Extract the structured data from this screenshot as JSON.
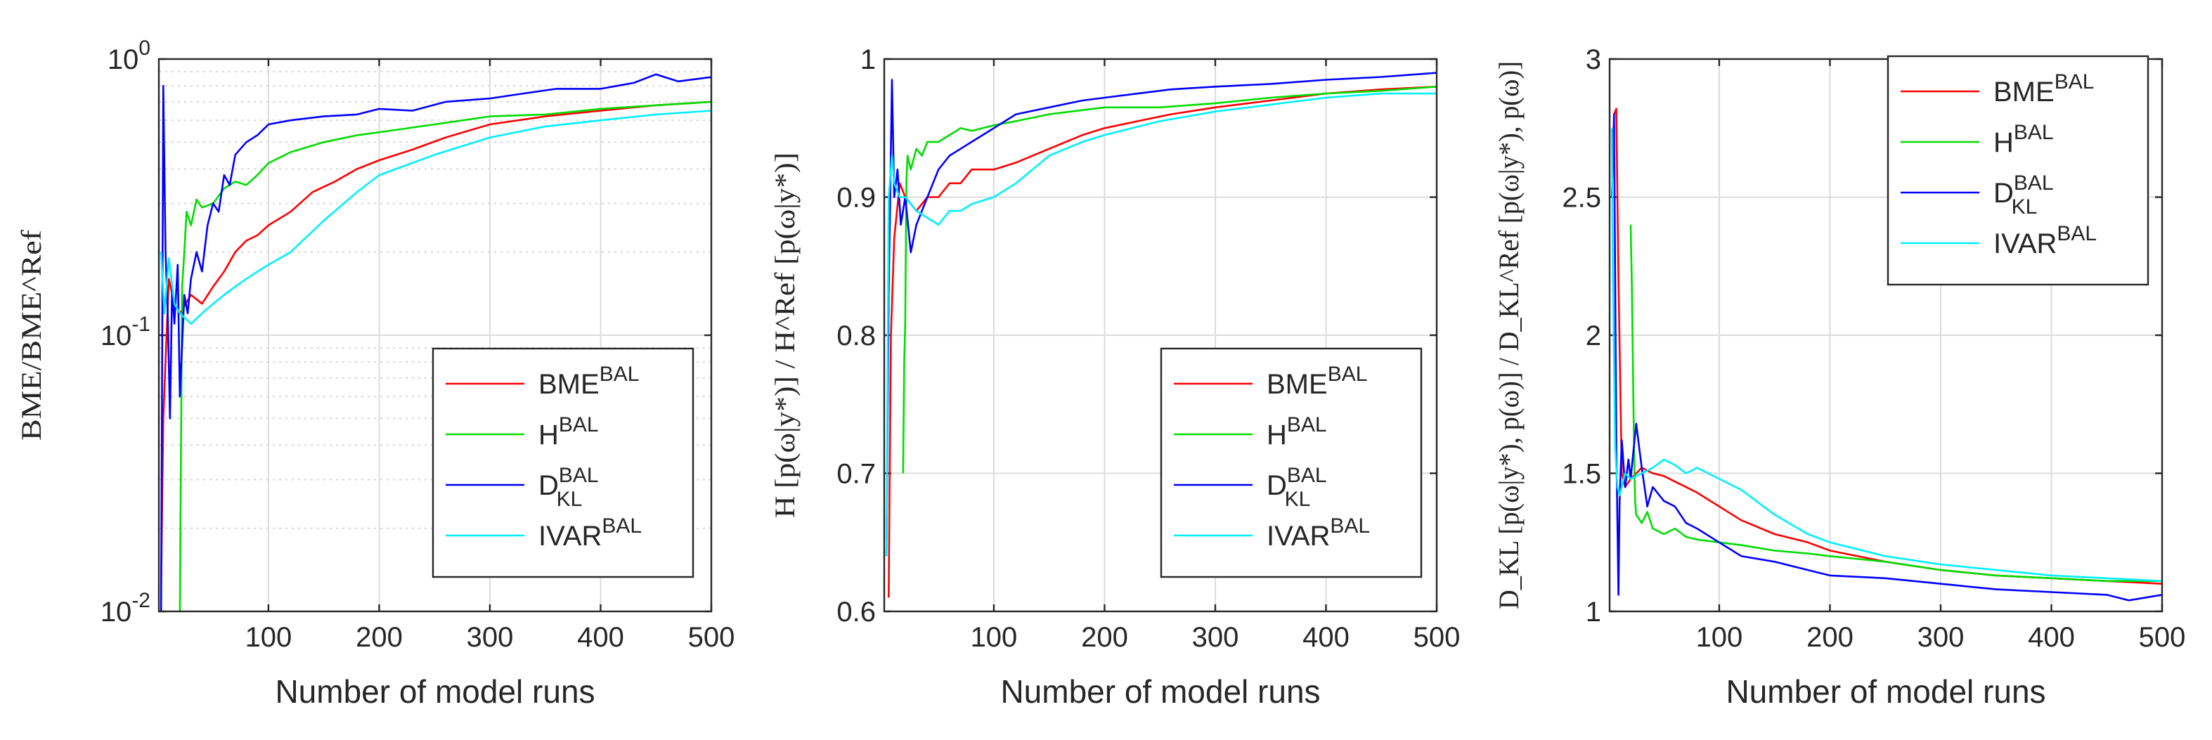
{
  "chart_data": [
    {
      "type": "line",
      "title": "",
      "xlabel": "Number of model runs",
      "ylabel": "BME/BME^Ref",
      "yscale": "log",
      "xlim": [
        1,
        500
      ],
      "ylim": [
        0.01,
        1
      ],
      "xticks": [
        "100",
        "200",
        "300",
        "400",
        "500"
      ],
      "yticks": [
        {
          "base": "10",
          "exp": "0",
          "value": 1
        },
        {
          "base": "10",
          "exp": "-1",
          "value": 0.1
        },
        {
          "base": "10",
          "exp": "-2",
          "value": 0.01
        }
      ],
      "legend_position": "bottom-right",
      "grid": true,
      "series": [
        {
          "name": "BME",
          "sup": "BAL",
          "sub": "",
          "color": "#ff0000",
          "x": [
            3,
            5,
            10,
            15,
            20,
            30,
            40,
            50,
            60,
            70,
            80,
            90,
            100,
            120,
            140,
            160,
            180,
            200,
            230,
            260,
            300,
            350,
            400,
            450,
            500
          ],
          "y": [
            0.012,
            0.05,
            0.16,
            0.13,
            0.12,
            0.14,
            0.13,
            0.15,
            0.17,
            0.2,
            0.22,
            0.23,
            0.25,
            0.28,
            0.33,
            0.36,
            0.4,
            0.43,
            0.47,
            0.52,
            0.58,
            0.62,
            0.65,
            0.68,
            0.7
          ]
        },
        {
          "name": "H",
          "sup": "BAL",
          "sub": "",
          "color": "#00dd00",
          "x": [
            20,
            22,
            24,
            26,
            30,
            35,
            40,
            50,
            60,
            70,
            80,
            90,
            100,
            120,
            150,
            180,
            210,
            250,
            300,
            350,
            400,
            450,
            500
          ],
          "y": [
            0.01,
            0.15,
            0.2,
            0.28,
            0.25,
            0.31,
            0.29,
            0.3,
            0.34,
            0.36,
            0.35,
            0.38,
            0.42,
            0.46,
            0.5,
            0.53,
            0.55,
            0.58,
            0.62,
            0.63,
            0.66,
            0.68,
            0.7
          ]
        },
        {
          "name": "D",
          "sup": "BAL",
          "sub": "KL",
          "color": "#0000ff",
          "x": [
            3,
            5,
            7,
            9,
            11,
            13,
            15,
            18,
            20,
            24,
            27,
            30,
            35,
            40,
            45,
            50,
            55,
            60,
            65,
            70,
            80,
            90,
            100,
            120,
            150,
            180,
            200,
            230,
            260,
            300,
            330,
            360,
            400,
            430,
            450,
            470,
            500
          ],
          "y": [
            0.01,
            0.8,
            0.2,
            0.12,
            0.05,
            0.15,
            0.11,
            0.18,
            0.06,
            0.14,
            0.12,
            0.16,
            0.2,
            0.17,
            0.25,
            0.3,
            0.28,
            0.38,
            0.35,
            0.45,
            0.5,
            0.53,
            0.58,
            0.6,
            0.62,
            0.63,
            0.66,
            0.65,
            0.7,
            0.72,
            0.75,
            0.78,
            0.78,
            0.82,
            0.88,
            0.83,
            0.86
          ]
        },
        {
          "name": "IVAR",
          "sup": "BAL",
          "sub": "",
          "color": "#00f0ff",
          "x": [
            3,
            6,
            10,
            15,
            20,
            30,
            40,
            50,
            60,
            70,
            80,
            90,
            100,
            120,
            150,
            180,
            200,
            250,
            300,
            350,
            400,
            450,
            500
          ],
          "y": [
            0.2,
            0.12,
            0.19,
            0.13,
            0.12,
            0.11,
            0.12,
            0.13,
            0.14,
            0.15,
            0.16,
            0.17,
            0.18,
            0.2,
            0.26,
            0.33,
            0.38,
            0.45,
            0.52,
            0.57,
            0.6,
            0.63,
            0.65
          ]
        }
      ]
    },
    {
      "type": "line",
      "title": "",
      "xlabel": "Number of model runs",
      "ylabel": "H [p(ω|y*)] / H^Ref [p(ω|y*)]",
      "xlim": [
        1,
        500
      ],
      "ylim": [
        0.6,
        1
      ],
      "xticks": [
        "100",
        "200",
        "300",
        "400",
        "500"
      ],
      "yticks": [
        "0.6",
        "0.7",
        "0.8",
        "0.9",
        "1"
      ],
      "legend_position": "bottom-right",
      "grid": true,
      "series": [
        {
          "name": "BME",
          "sup": "BAL",
          "sub": "",
          "color": "#ff0000",
          "x": [
            5,
            7,
            10,
            15,
            20,
            30,
            40,
            50,
            60,
            70,
            80,
            100,
            120,
            150,
            180,
            200,
            230,
            260,
            300,
            350,
            400,
            450,
            500
          ],
          "y": [
            0.61,
            0.8,
            0.87,
            0.91,
            0.9,
            0.89,
            0.9,
            0.9,
            0.91,
            0.91,
            0.92,
            0.92,
            0.925,
            0.935,
            0.945,
            0.95,
            0.955,
            0.96,
            0.965,
            0.97,
            0.975,
            0.978,
            0.98
          ]
        },
        {
          "name": "H",
          "sup": "BAL",
          "sub": "",
          "color": "#00dd00",
          "x": [
            18,
            19,
            20,
            21,
            22,
            25,
            30,
            35,
            40,
            50,
            60,
            70,
            80,
            100,
            120,
            150,
            180,
            200,
            250,
            300,
            350,
            400,
            450,
            500
          ],
          "y": [
            0.7,
            0.78,
            0.81,
            0.91,
            0.93,
            0.92,
            0.935,
            0.93,
            0.94,
            0.94,
            0.945,
            0.95,
            0.948,
            0.952,
            0.955,
            0.96,
            0.963,
            0.965,
            0.965,
            0.968,
            0.972,
            0.975,
            0.977,
            0.98
          ]
        },
        {
          "name": "D",
          "sup": "BAL",
          "sub": "KL",
          "color": "#0000ff",
          "x": [
            3,
            5,
            8,
            10,
            13,
            16,
            20,
            25,
            30,
            35,
            40,
            45,
            50,
            60,
            70,
            80,
            100,
            120,
            150,
            180,
            200,
            230,
            260,
            300,
            350,
            400,
            450,
            500
          ],
          "y": [
            0.64,
            0.83,
            0.985,
            0.9,
            0.92,
            0.88,
            0.9,
            0.86,
            0.88,
            0.89,
            0.9,
            0.91,
            0.92,
            0.93,
            0.935,
            0.94,
            0.95,
            0.96,
            0.965,
            0.97,
            0.972,
            0.975,
            0.978,
            0.98,
            0.982,
            0.985,
            0.987,
            0.99
          ]
        },
        {
          "name": "IVAR",
          "sup": "BAL",
          "sub": "",
          "color": "#00f0ff",
          "x": [
            3,
            5,
            8,
            10,
            15,
            20,
            30,
            40,
            50,
            60,
            70,
            80,
            100,
            120,
            150,
            180,
            200,
            250,
            300,
            350,
            400,
            450,
            500
          ],
          "y": [
            0.64,
            0.9,
            0.93,
            0.91,
            0.9,
            0.9,
            0.89,
            0.885,
            0.88,
            0.89,
            0.89,
            0.895,
            0.9,
            0.91,
            0.93,
            0.94,
            0.945,
            0.955,
            0.962,
            0.967,
            0.972,
            0.975,
            0.975
          ]
        }
      ]
    },
    {
      "type": "line",
      "title": "",
      "xlabel": "Number of model runs",
      "ylabel": "D_KL [p(ω|y*), p(ω)] / D_KL^Ref [p(ω|y*), p(ω)]",
      "xlim": [
        1,
        500
      ],
      "ylim": [
        1,
        3
      ],
      "xticks": [
        "100",
        "200",
        "300",
        "400",
        "500"
      ],
      "yticks": [
        "1",
        "1.5",
        "2",
        "2.5",
        "3"
      ],
      "legend_position": "top-right",
      "grid": true,
      "series": [
        {
          "name": "BME",
          "sup": "BAL",
          "sub": "",
          "color": "#ff0000",
          "x": [
            5,
            7,
            9,
            12,
            15,
            20,
            25,
            30,
            40,
            50,
            60,
            70,
            80,
            100,
            120,
            150,
            180,
            200,
            250,
            300,
            350,
            400,
            450,
            500
          ],
          "y": [
            2.8,
            2.82,
            2.2,
            1.5,
            1.45,
            1.48,
            1.5,
            1.52,
            1.5,
            1.49,
            1.47,
            1.45,
            1.43,
            1.38,
            1.33,
            1.28,
            1.25,
            1.22,
            1.18,
            1.15,
            1.13,
            1.12,
            1.11,
            1.1
          ]
        },
        {
          "name": "H",
          "sup": "BAL",
          "sub": "",
          "color": "#00dd00",
          "x": [
            20,
            21,
            22,
            23,
            24,
            25,
            30,
            35,
            40,
            50,
            60,
            70,
            80,
            100,
            120,
            150,
            180,
            200,
            250,
            300,
            350,
            400,
            450,
            500
          ],
          "y": [
            2.4,
            2.2,
            1.9,
            1.6,
            1.4,
            1.35,
            1.32,
            1.36,
            1.3,
            1.28,
            1.3,
            1.27,
            1.26,
            1.25,
            1.24,
            1.22,
            1.21,
            1.2,
            1.18,
            1.15,
            1.13,
            1.12,
            1.11,
            1.11
          ]
        },
        {
          "name": "D",
          "sup": "BAL",
          "sub": "KL",
          "color": "#0000ff",
          "x": [
            3,
            5,
            7,
            9,
            10,
            12,
            15,
            18,
            20,
            25,
            30,
            35,
            40,
            50,
            60,
            70,
            80,
            100,
            120,
            150,
            180,
            200,
            250,
            300,
            350,
            400,
            450,
            470,
            500
          ],
          "y": [
            2.5,
            2.8,
            1.6,
            1.06,
            1.4,
            1.62,
            1.45,
            1.55,
            1.48,
            1.68,
            1.52,
            1.38,
            1.45,
            1.4,
            1.38,
            1.32,
            1.3,
            1.25,
            1.2,
            1.18,
            1.15,
            1.13,
            1.12,
            1.1,
            1.08,
            1.07,
            1.06,
            1.04,
            1.06
          ]
        },
        {
          "name": "IVAR",
          "sup": "BAL",
          "sub": "",
          "color": "#00f0ff",
          "x": [
            3,
            4,
            6,
            8,
            10,
            15,
            20,
            30,
            40,
            50,
            60,
            70,
            80,
            100,
            120,
            150,
            180,
            200,
            250,
            300,
            350,
            400,
            450,
            500
          ],
          "y": [
            2.75,
            2.2,
            1.6,
            1.45,
            1.42,
            1.5,
            1.48,
            1.5,
            1.52,
            1.55,
            1.53,
            1.5,
            1.52,
            1.48,
            1.44,
            1.35,
            1.28,
            1.25,
            1.2,
            1.17,
            1.15,
            1.13,
            1.12,
            1.11
          ]
        }
      ]
    }
  ]
}
